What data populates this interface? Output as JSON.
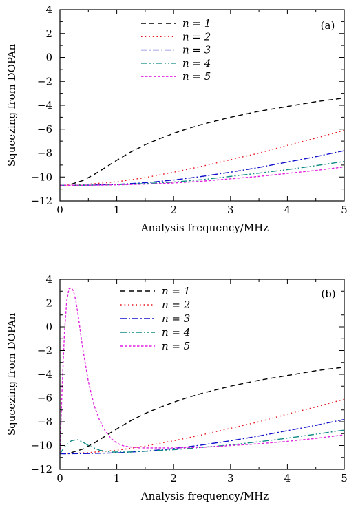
{
  "chart_data": [
    {
      "type": "line",
      "panel_label": "(a)",
      "xlabel": "Analysis frequency/MHz",
      "ylabel": "Squeezing from DOPAn",
      "xlim": [
        0,
        5
      ],
      "ylim": [
        -12,
        4
      ],
      "x_ticks": [
        "0",
        "1",
        "2",
        "3",
        "4",
        "5"
      ],
      "y_ticks": [
        "4",
        "2",
        "0",
        "−2",
        "−4",
        "−6",
        "−8",
        "−10",
        "−12"
      ],
      "legend_position": "top-center",
      "series": [
        {
          "name": "n = 1",
          "color": "#000000",
          "dash": "dash",
          "x": [
            0.2,
            0.4,
            0.6,
            0.8,
            1.0,
            1.25,
            1.5,
            1.75,
            2.0,
            2.25,
            2.5,
            2.75,
            3.0,
            3.25,
            3.5,
            3.75,
            4.0,
            4.25,
            4.5,
            4.75,
            5.0
          ],
          "y": [
            -10.6,
            -10.3,
            -9.8,
            -9.2,
            -8.6,
            -7.9,
            -7.3,
            -6.8,
            -6.35,
            -5.95,
            -5.6,
            -5.3,
            -5.0,
            -4.75,
            -4.5,
            -4.3,
            -4.1,
            -3.9,
            -3.7,
            -3.55,
            -3.4
          ]
        },
        {
          "name": "n = 2",
          "color": "#e8141a",
          "dash": "dot",
          "x": [
            0,
            0.5,
            1.0,
            1.5,
            2.0,
            2.5,
            3.0,
            3.5,
            4.0,
            4.5,
            5.0
          ],
          "y": [
            -10.7,
            -10.6,
            -10.4,
            -10.05,
            -9.6,
            -9.1,
            -8.55,
            -8.0,
            -7.35,
            -6.75,
            -6.1
          ]
        },
        {
          "name": "n = 3",
          "color": "#1010cc",
          "dash": "dashdot",
          "x": [
            0,
            0.5,
            1.0,
            1.5,
            2.0,
            2.5,
            3.0,
            3.5,
            4.0,
            4.5,
            5.0
          ],
          "y": [
            -10.7,
            -10.68,
            -10.62,
            -10.48,
            -10.25,
            -9.95,
            -9.6,
            -9.2,
            -8.75,
            -8.3,
            -7.8
          ]
        },
        {
          "name": "n = 4",
          "color": "#0e8a84",
          "dash": "dashdotdot",
          "x": [
            0,
            0.5,
            1.0,
            1.5,
            2.0,
            2.5,
            3.0,
            3.5,
            4.0,
            4.5,
            5.0
          ],
          "y": [
            -10.7,
            -10.68,
            -10.64,
            -10.55,
            -10.42,
            -10.22,
            -9.95,
            -9.68,
            -9.38,
            -9.05,
            -8.7
          ]
        },
        {
          "name": "n = 5",
          "color": "#e020e0",
          "dash": "shortdash",
          "x": [
            0,
            0.5,
            1.0,
            1.5,
            2.0,
            2.5,
            3.0,
            3.5,
            4.0,
            4.5,
            5.0
          ],
          "y": [
            -10.7,
            -10.69,
            -10.66,
            -10.6,
            -10.5,
            -10.35,
            -10.15,
            -9.95,
            -9.7,
            -9.45,
            -9.15
          ]
        }
      ]
    },
    {
      "type": "line",
      "panel_label": "(b)",
      "xlabel": "Analysis frequency/MHz",
      "ylabel": "Squeezing from DOPAn",
      "xlim": [
        0,
        5
      ],
      "ylim": [
        -12,
        4
      ],
      "x_ticks": [
        "0",
        "1",
        "2",
        "3",
        "4",
        "5"
      ],
      "y_ticks": [
        "4",
        "2",
        "0",
        "−2",
        "−4",
        "−6",
        "−8",
        "−10",
        "−12"
      ],
      "legend_position": "top-center",
      "series": [
        {
          "name": "n = 1",
          "color": "#000000",
          "dash": "dash",
          "x": [
            0.2,
            0.4,
            0.6,
            0.8,
            1.0,
            1.25,
            1.5,
            1.75,
            2.0,
            2.25,
            2.5,
            2.75,
            3.0,
            3.25,
            3.5,
            3.75,
            4.0,
            4.25,
            4.5,
            4.75,
            5.0
          ],
          "y": [
            -10.6,
            -10.3,
            -9.8,
            -9.2,
            -8.6,
            -7.9,
            -7.3,
            -6.8,
            -6.35,
            -5.95,
            -5.6,
            -5.3,
            -5.0,
            -4.75,
            -4.5,
            -4.3,
            -4.1,
            -3.9,
            -3.7,
            -3.55,
            -3.4
          ]
        },
        {
          "name": "n = 2",
          "color": "#e8141a",
          "dash": "dot",
          "x": [
            0,
            0.5,
            1.0,
            1.5,
            2.0,
            2.5,
            3.0,
            3.5,
            4.0,
            4.5,
            5.0
          ],
          "y": [
            -10.7,
            -10.6,
            -10.4,
            -10.05,
            -9.6,
            -9.1,
            -8.55,
            -8.0,
            -7.35,
            -6.75,
            -6.1
          ]
        },
        {
          "name": "n = 3",
          "color": "#1010cc",
          "dash": "dashdot",
          "x": [
            0,
            0.5,
            1.0,
            1.5,
            2.0,
            2.5,
            3.0,
            3.5,
            4.0,
            4.5,
            5.0
          ],
          "y": [
            -10.7,
            -10.68,
            -10.62,
            -10.48,
            -10.25,
            -9.95,
            -9.6,
            -9.2,
            -8.75,
            -8.3,
            -7.8
          ]
        },
        {
          "name": "n = 4",
          "color": "#0e8a84",
          "dash": "dashdotdot",
          "x": [
            0,
            0.1,
            0.2,
            0.3,
            0.4,
            0.5,
            0.7,
            0.9,
            1.2,
            1.5,
            2.0,
            2.5,
            3.0,
            3.5,
            4.0,
            4.5,
            5.0
          ],
          "y": [
            -10.7,
            -10.0,
            -9.6,
            -9.5,
            -9.7,
            -10.0,
            -10.4,
            -10.55,
            -10.55,
            -10.48,
            -10.35,
            -10.15,
            -9.95,
            -9.68,
            -9.38,
            -9.05,
            -8.7
          ]
        },
        {
          "name": "n = 5",
          "color": "#e020e0",
          "dash": "shortdash",
          "x": [
            0,
            0.04,
            0.08,
            0.12,
            0.16,
            0.2,
            0.24,
            0.28,
            0.32,
            0.4,
            0.5,
            0.6,
            0.7,
            0.8,
            0.9,
            1.0,
            1.1,
            1.2,
            1.3,
            1.4,
            1.5,
            1.6,
            1.8,
            2.0,
            2.5,
            3.0,
            3.5,
            4.0,
            4.5,
            5.0
          ],
          "y": [
            -10.7,
            -5.0,
            -0.5,
            2.2,
            3.2,
            3.3,
            3.0,
            2.2,
            1.0,
            -1.8,
            -4.6,
            -6.6,
            -7.9,
            -8.8,
            -9.4,
            -9.8,
            -10.0,
            -10.1,
            -10.15,
            -10.2,
            -10.2,
            -10.2,
            -10.2,
            -10.2,
            -10.15,
            -10.0,
            -9.85,
            -9.65,
            -9.4,
            -9.1
          ]
        }
      ]
    }
  ]
}
